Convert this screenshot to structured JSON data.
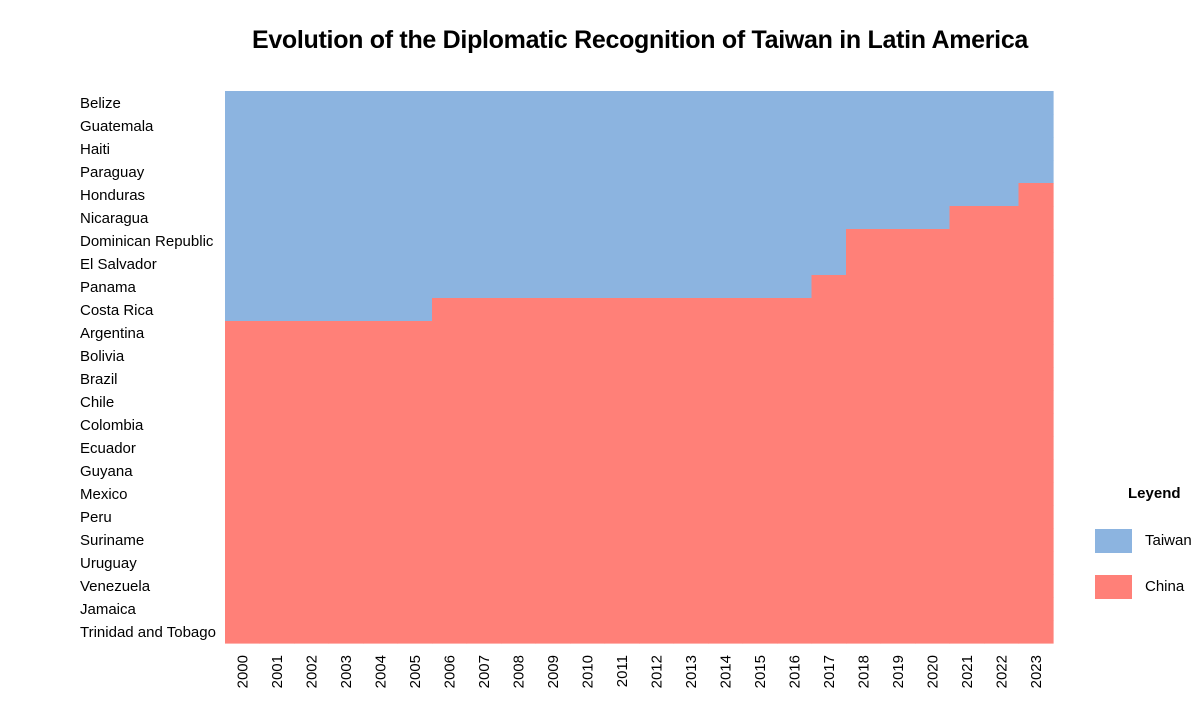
{
  "chart_data": {
    "type": "heatmap",
    "title": "Evolution of the Diplomatic Recognition of Taiwan in Latin America",
    "xlabel": "",
    "ylabel": "",
    "years": [
      "2000",
      "2001",
      "2002",
      "2003",
      "2004",
      "2005",
      "2006",
      "2007",
      "2008",
      "2009",
      "2010",
      "2011",
      "2012",
      "2013",
      "2014",
      "2015",
      "2016",
      "2017",
      "2018",
      "2019",
      "2020",
      "2021",
      "2022",
      "2023"
    ],
    "countries": [
      "Belize",
      "Guatemala",
      "Haiti",
      "Paraguay",
      "Honduras",
      "Nicaragua",
      "Dominican Republic",
      "El Salvador",
      "Panama",
      "Costa Rica",
      "Argentina",
      "Bolivia",
      "Brazil",
      "Chile",
      "Colombia",
      "Ecuador",
      "Guyana",
      "Mexico",
      "Peru",
      "Suriname",
      "Uruguay",
      "Venezuela",
      "Jamaica",
      "Trinidad and Tobago"
    ],
    "categories": [
      "Taiwan",
      "China"
    ],
    "colors": {
      "Taiwan": "#8cb4e0",
      "China": "#ff8078"
    },
    "recognition_by_country": {
      "Belize": [
        "Taiwan",
        "Taiwan",
        "Taiwan",
        "Taiwan",
        "Taiwan",
        "Taiwan",
        "Taiwan",
        "Taiwan",
        "Taiwan",
        "Taiwan",
        "Taiwan",
        "Taiwan",
        "Taiwan",
        "Taiwan",
        "Taiwan",
        "Taiwan",
        "Taiwan",
        "Taiwan",
        "Taiwan",
        "Taiwan",
        "Taiwan",
        "Taiwan",
        "Taiwan",
        "Taiwan"
      ],
      "Guatemala": [
        "Taiwan",
        "Taiwan",
        "Taiwan",
        "Taiwan",
        "Taiwan",
        "Taiwan",
        "Taiwan",
        "Taiwan",
        "Taiwan",
        "Taiwan",
        "Taiwan",
        "Taiwan",
        "Taiwan",
        "Taiwan",
        "Taiwan",
        "Taiwan",
        "Taiwan",
        "Taiwan",
        "Taiwan",
        "Taiwan",
        "Taiwan",
        "Taiwan",
        "Taiwan",
        "Taiwan"
      ],
      "Haiti": [
        "Taiwan",
        "Taiwan",
        "Taiwan",
        "Taiwan",
        "Taiwan",
        "Taiwan",
        "Taiwan",
        "Taiwan",
        "Taiwan",
        "Taiwan",
        "Taiwan",
        "Taiwan",
        "Taiwan",
        "Taiwan",
        "Taiwan",
        "Taiwan",
        "Taiwan",
        "Taiwan",
        "Taiwan",
        "Taiwan",
        "Taiwan",
        "Taiwan",
        "Taiwan",
        "Taiwan"
      ],
      "Paraguay": [
        "Taiwan",
        "Taiwan",
        "Taiwan",
        "Taiwan",
        "Taiwan",
        "Taiwan",
        "Taiwan",
        "Taiwan",
        "Taiwan",
        "Taiwan",
        "Taiwan",
        "Taiwan",
        "Taiwan",
        "Taiwan",
        "Taiwan",
        "Taiwan",
        "Taiwan",
        "Taiwan",
        "Taiwan",
        "Taiwan",
        "Taiwan",
        "Taiwan",
        "Taiwan",
        "Taiwan"
      ],
      "Honduras": [
        "Taiwan",
        "Taiwan",
        "Taiwan",
        "Taiwan",
        "Taiwan",
        "Taiwan",
        "Taiwan",
        "Taiwan",
        "Taiwan",
        "Taiwan",
        "Taiwan",
        "Taiwan",
        "Taiwan",
        "Taiwan",
        "Taiwan",
        "Taiwan",
        "Taiwan",
        "Taiwan",
        "Taiwan",
        "Taiwan",
        "Taiwan",
        "Taiwan",
        "Taiwan",
        "China"
      ],
      "Nicaragua": [
        "Taiwan",
        "Taiwan",
        "Taiwan",
        "Taiwan",
        "Taiwan",
        "Taiwan",
        "Taiwan",
        "Taiwan",
        "Taiwan",
        "Taiwan",
        "Taiwan",
        "Taiwan",
        "Taiwan",
        "Taiwan",
        "Taiwan",
        "Taiwan",
        "Taiwan",
        "Taiwan",
        "Taiwan",
        "Taiwan",
        "Taiwan",
        "China",
        "China",
        "China"
      ],
      "Dominican Republic": [
        "Taiwan",
        "Taiwan",
        "Taiwan",
        "Taiwan",
        "Taiwan",
        "Taiwan",
        "Taiwan",
        "Taiwan",
        "Taiwan",
        "Taiwan",
        "Taiwan",
        "Taiwan",
        "Taiwan",
        "Taiwan",
        "Taiwan",
        "Taiwan",
        "Taiwan",
        "Taiwan",
        "China",
        "China",
        "China",
        "China",
        "China",
        "China"
      ],
      "El Salvador": [
        "Taiwan",
        "Taiwan",
        "Taiwan",
        "Taiwan",
        "Taiwan",
        "Taiwan",
        "Taiwan",
        "Taiwan",
        "Taiwan",
        "Taiwan",
        "Taiwan",
        "Taiwan",
        "Taiwan",
        "Taiwan",
        "Taiwan",
        "Taiwan",
        "Taiwan",
        "Taiwan",
        "China",
        "China",
        "China",
        "China",
        "China",
        "China"
      ],
      "Panama": [
        "Taiwan",
        "Taiwan",
        "Taiwan",
        "Taiwan",
        "Taiwan",
        "Taiwan",
        "Taiwan",
        "Taiwan",
        "Taiwan",
        "Taiwan",
        "Taiwan",
        "Taiwan",
        "Taiwan",
        "Taiwan",
        "Taiwan",
        "Taiwan",
        "Taiwan",
        "China",
        "China",
        "China",
        "China",
        "China",
        "China",
        "China"
      ],
      "Costa Rica": [
        "Taiwan",
        "Taiwan",
        "Taiwan",
        "Taiwan",
        "Taiwan",
        "Taiwan",
        "China",
        "China",
        "China",
        "China",
        "China",
        "China",
        "China",
        "China",
        "China",
        "China",
        "China",
        "China",
        "China",
        "China",
        "China",
        "China",
        "China",
        "China"
      ],
      "Argentina": [
        "China",
        "China",
        "China",
        "China",
        "China",
        "China",
        "China",
        "China",
        "China",
        "China",
        "China",
        "China",
        "China",
        "China",
        "China",
        "China",
        "China",
        "China",
        "China",
        "China",
        "China",
        "China",
        "China",
        "China"
      ],
      "Bolivia": [
        "China",
        "China",
        "China",
        "China",
        "China",
        "China",
        "China",
        "China",
        "China",
        "China",
        "China",
        "China",
        "China",
        "China",
        "China",
        "China",
        "China",
        "China",
        "China",
        "China",
        "China",
        "China",
        "China",
        "China"
      ],
      "Brazil": [
        "China",
        "China",
        "China",
        "China",
        "China",
        "China",
        "China",
        "China",
        "China",
        "China",
        "China",
        "China",
        "China",
        "China",
        "China",
        "China",
        "China",
        "China",
        "China",
        "China",
        "China",
        "China",
        "China",
        "China"
      ],
      "Chile": [
        "China",
        "China",
        "China",
        "China",
        "China",
        "China",
        "China",
        "China",
        "China",
        "China",
        "China",
        "China",
        "China",
        "China",
        "China",
        "China",
        "China",
        "China",
        "China",
        "China",
        "China",
        "China",
        "China",
        "China"
      ],
      "Colombia": [
        "China",
        "China",
        "China",
        "China",
        "China",
        "China",
        "China",
        "China",
        "China",
        "China",
        "China",
        "China",
        "China",
        "China",
        "China",
        "China",
        "China",
        "China",
        "China",
        "China",
        "China",
        "China",
        "China",
        "China"
      ],
      "Ecuador": [
        "China",
        "China",
        "China",
        "China",
        "China",
        "China",
        "China",
        "China",
        "China",
        "China",
        "China",
        "China",
        "China",
        "China",
        "China",
        "China",
        "China",
        "China",
        "China",
        "China",
        "China",
        "China",
        "China",
        "China"
      ],
      "Guyana": [
        "China",
        "China",
        "China",
        "China",
        "China",
        "China",
        "China",
        "China",
        "China",
        "China",
        "China",
        "China",
        "China",
        "China",
        "China",
        "China",
        "China",
        "China",
        "China",
        "China",
        "China",
        "China",
        "China",
        "China"
      ],
      "Mexico": [
        "China",
        "China",
        "China",
        "China",
        "China",
        "China",
        "China",
        "China",
        "China",
        "China",
        "China",
        "China",
        "China",
        "China",
        "China",
        "China",
        "China",
        "China",
        "China",
        "China",
        "China",
        "China",
        "China",
        "China"
      ],
      "Peru": [
        "China",
        "China",
        "China",
        "China",
        "China",
        "China",
        "China",
        "China",
        "China",
        "China",
        "China",
        "China",
        "China",
        "China",
        "China",
        "China",
        "China",
        "China",
        "China",
        "China",
        "China",
        "China",
        "China",
        "China"
      ],
      "Suriname": [
        "China",
        "China",
        "China",
        "China",
        "China",
        "China",
        "China",
        "China",
        "China",
        "China",
        "China",
        "China",
        "China",
        "China",
        "China",
        "China",
        "China",
        "China",
        "China",
        "China",
        "China",
        "China",
        "China",
        "China"
      ],
      "Uruguay": [
        "China",
        "China",
        "China",
        "China",
        "China",
        "China",
        "China",
        "China",
        "China",
        "China",
        "China",
        "China",
        "China",
        "China",
        "China",
        "China",
        "China",
        "China",
        "China",
        "China",
        "China",
        "China",
        "China",
        "China"
      ],
      "Venezuela": [
        "China",
        "China",
        "China",
        "China",
        "China",
        "China",
        "China",
        "China",
        "China",
        "China",
        "China",
        "China",
        "China",
        "China",
        "China",
        "China",
        "China",
        "China",
        "China",
        "China",
        "China",
        "China",
        "China",
        "China"
      ],
      "Jamaica": [
        "China",
        "China",
        "China",
        "China",
        "China",
        "China",
        "China",
        "China",
        "China",
        "China",
        "China",
        "China",
        "China",
        "China",
        "China",
        "China",
        "China",
        "China",
        "China",
        "China",
        "China",
        "China",
        "China",
        "China"
      ],
      "Trinidad and Tobago": [
        "China",
        "China",
        "China",
        "China",
        "China",
        "China",
        "China",
        "China",
        "China",
        "China",
        "China",
        "China",
        "China",
        "China",
        "China",
        "China",
        "China",
        "China",
        "China",
        "China",
        "China",
        "China",
        "China",
        "China"
      ]
    },
    "legend": {
      "title": "Leyend",
      "position": "right"
    },
    "grid": false
  }
}
